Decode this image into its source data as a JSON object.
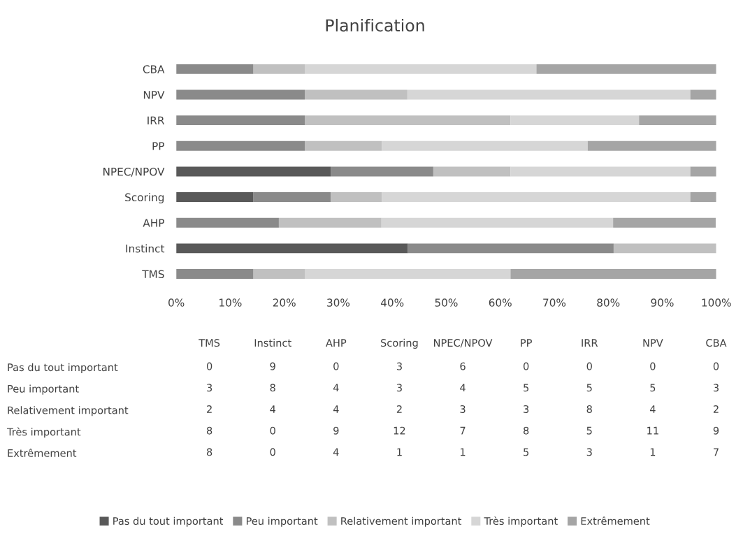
{
  "chart_data": [
    {
      "type": "bar",
      "title": "Planification",
      "orientation": "horizontal",
      "stacked": true,
      "categories": [
        "CBA",
        "NPV",
        "IRR",
        "PP",
        "NPEC/NPOV",
        "Scoring",
        "AHP",
        "Instinct",
        "TMS"
      ],
      "xlim": [
        0,
        100
      ],
      "xticks": [
        {
          "value": 0,
          "label": "0%"
        },
        {
          "value": 10,
          "label": "10%"
        },
        {
          "value": 20,
          "label": "20%"
        },
        {
          "value": 30,
          "label": "30%"
        },
        {
          "value": 40,
          "label": "40%"
        },
        {
          "value": 50,
          "label": "50%"
        },
        {
          "value": 60,
          "label": "60%"
        },
        {
          "value": 70,
          "label": "70%"
        },
        {
          "value": 80,
          "label": "80%"
        },
        {
          "value": 90,
          "label": "90%"
        },
        {
          "value": 100,
          "label": "100%"
        }
      ],
      "legend": "bottom",
      "grid": false,
      "series": [
        {
          "name": "Pas du tout important",
          "color": "#595959",
          "values": [
            0,
            0,
            0,
            0,
            28.6,
            14.3,
            0,
            42.9,
            0
          ]
        },
        {
          "name": "Peu important",
          "color": "#8a8a8a",
          "values": [
            14.3,
            23.8,
            23.8,
            23.8,
            19.0,
            14.3,
            19.0,
            38.1,
            14.3
          ]
        },
        {
          "name": "Relativement important",
          "color": "#c0c0c0",
          "values": [
            9.5,
            19.0,
            38.1,
            14.3,
            14.3,
            9.5,
            19.0,
            19.0,
            9.5
          ]
        },
        {
          "name": "Très important",
          "color": "#d6d6d6",
          "values": [
            42.9,
            52.4,
            23.8,
            38.1,
            33.3,
            57.1,
            42.9,
            0,
            38.1
          ]
        },
        {
          "name": "Extrêmement",
          "color": "#a5a5a5",
          "values": [
            33.3,
            4.8,
            14.3,
            23.8,
            4.8,
            4.8,
            19.0,
            0,
            38.1
          ]
        }
      ]
    },
    {
      "type": "heatmap",
      "data_labels": true,
      "categories": [
        "TMS",
        "Instinct",
        "AHP",
        "Scoring",
        "NPEC/NPOV",
        "PP",
        "IRR",
        "NPV",
        "CBA"
      ],
      "y_categories": [
        "Pas du tout important",
        "Peu important",
        "Relativement important",
        "Très important",
        "Extrêmement"
      ],
      "cells": [
        [
          0,
          9,
          0,
          3,
          6,
          0,
          0,
          0,
          0
        ],
        [
          3,
          8,
          4,
          3,
          4,
          5,
          5,
          5,
          3
        ],
        [
          2,
          4,
          4,
          2,
          3,
          3,
          8,
          4,
          2
        ],
        [
          8,
          0,
          9,
          12,
          7,
          8,
          5,
          11,
          9
        ],
        [
          8,
          0,
          4,
          1,
          1,
          5,
          3,
          1,
          7
        ]
      ]
    }
  ]
}
